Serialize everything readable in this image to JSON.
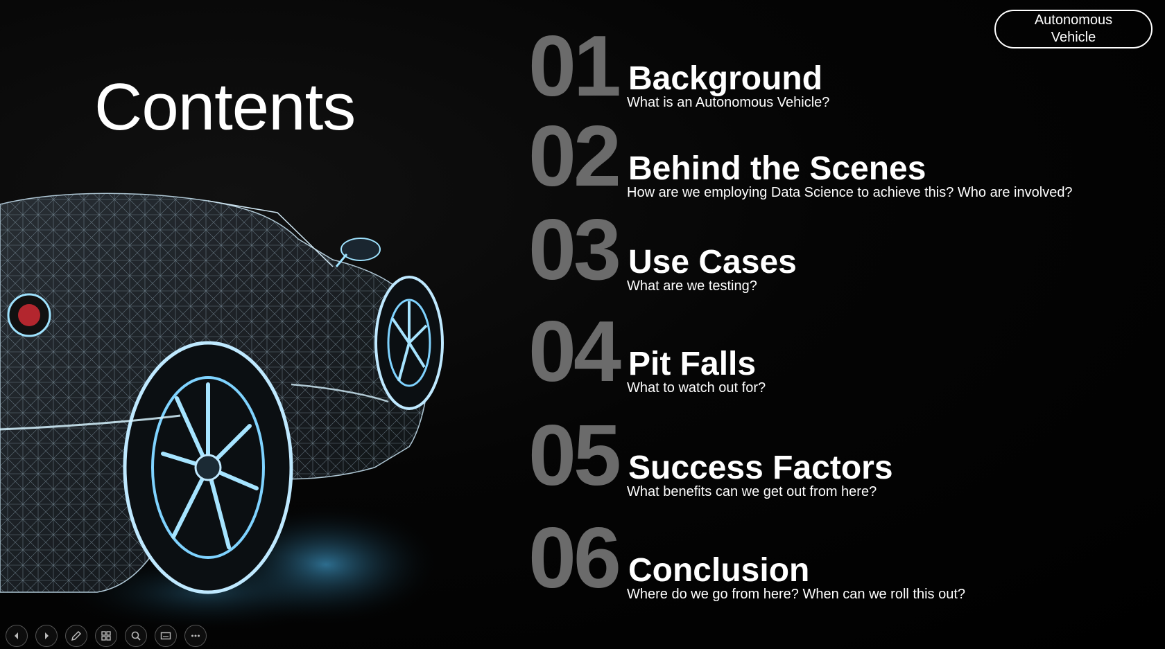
{
  "slide": {
    "title": "Contents",
    "badge": "Autonomous Vehicle",
    "items": [
      {
        "number": "01",
        "title": "Background",
        "subtitle": "What is an Autonomous Vehicle?"
      },
      {
        "number": "02",
        "title": "Behind the Scenes",
        "subtitle": "How are we employing Data Science to achieve this? Who are involved?"
      },
      {
        "number": "03",
        "title": "Use Cases",
        "subtitle": "What are we testing?"
      },
      {
        "number": "04",
        "title": "Pit Falls",
        "subtitle": "What to watch out for?"
      },
      {
        "number": "05",
        "title": "Success Factors",
        "subtitle": "What benefits can we get out from here?"
      },
      {
        "number": "06",
        "title": "Conclusion",
        "subtitle": "Where do we go from here? When can we roll this out?"
      }
    ]
  },
  "toolbar": {
    "buttons": [
      "previous-slide-icon",
      "next-slide-icon",
      "pen-icon",
      "slide-grid-icon",
      "zoom-icon",
      "subtitles-icon",
      "more-options-icon"
    ]
  },
  "colors": {
    "background": "#000000",
    "number": "#6b6b6b",
    "text": "#ffffff",
    "wireframe": "#9fe3ff"
  }
}
